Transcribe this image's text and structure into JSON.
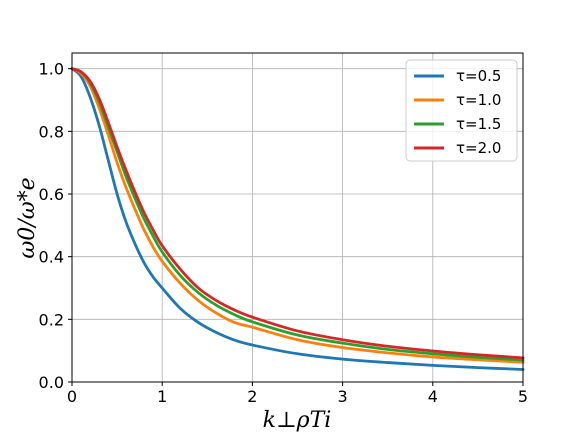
{
  "chart_data": {
    "type": "line",
    "title": "",
    "xlabel": "k⊥ρTi",
    "ylabel": "ω0/ω*e",
    "xlim": [
      0,
      5
    ],
    "ylim": [
      0,
      1.05
    ],
    "xticks": [
      0,
      1,
      2,
      3,
      4,
      5
    ],
    "xtick_labels": [
      "0",
      "1",
      "2",
      "3",
      "4",
      "5"
    ],
    "yticks": [
      0.0,
      0.2,
      0.4,
      0.6,
      0.8,
      1.0
    ],
    "ytick_labels": [
      "0.0",
      "0.2",
      "0.4",
      "0.6",
      "0.8",
      "1.0"
    ],
    "grid": true,
    "legend_position": "top-right",
    "x": [
      0,
      0.1,
      0.2,
      0.3,
      0.4,
      0.5,
      0.6,
      0.7,
      0.8,
      0.9,
      1.0,
      1.2,
      1.4,
      1.6,
      1.8,
      2.0,
      2.5,
      3.0,
      3.5,
      4.0,
      4.5,
      5.0
    ],
    "series": [
      {
        "name": "τ=0.5",
        "color": "#1f77b4",
        "values": [
          1.0,
          0.975,
          0.91,
          0.82,
          0.71,
          0.6,
          0.51,
          0.44,
          0.38,
          0.335,
          0.3,
          0.235,
          0.19,
          0.158,
          0.134,
          0.118,
          0.09,
          0.073,
          0.062,
          0.053,
          0.046,
          0.04
        ]
      },
      {
        "name": "τ=1.0",
        "color": "#ff7f0e",
        "values": [
          1.0,
          0.985,
          0.945,
          0.875,
          0.79,
          0.7,
          0.62,
          0.55,
          0.485,
          0.43,
          0.385,
          0.315,
          0.26,
          0.22,
          0.19,
          0.175,
          0.135,
          0.11,
          0.093,
          0.08,
          0.071,
          0.063
        ]
      },
      {
        "name": "τ=1.5",
        "color": "#2ca02c",
        "values": [
          1.0,
          0.99,
          0.955,
          0.895,
          0.815,
          0.735,
          0.655,
          0.585,
          0.52,
          0.465,
          0.415,
          0.34,
          0.285,
          0.245,
          0.215,
          0.192,
          0.15,
          0.124,
          0.104,
          0.09,
          0.079,
          0.07
        ]
      },
      {
        "name": "τ=2.0",
        "color": "#d62728",
        "values": [
          1.0,
          0.99,
          0.96,
          0.905,
          0.83,
          0.75,
          0.675,
          0.605,
          0.54,
          0.485,
          0.435,
          0.36,
          0.3,
          0.26,
          0.23,
          0.207,
          0.163,
          0.135,
          0.114,
          0.099,
          0.087,
          0.077
        ]
      }
    ]
  }
}
